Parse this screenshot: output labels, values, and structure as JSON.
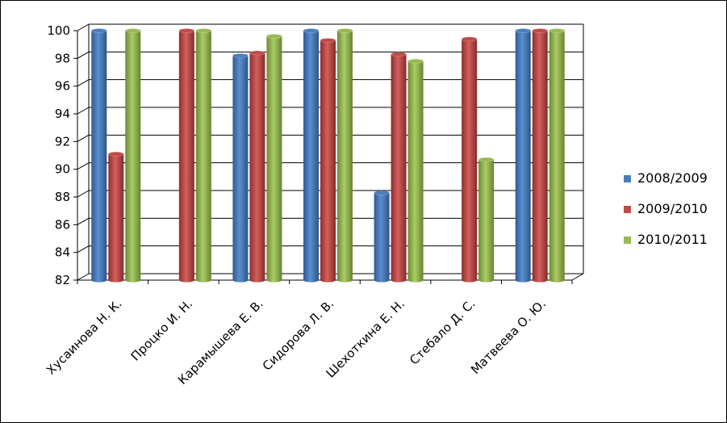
{
  "chart_data": {
    "type": "bar",
    "style": "3d-clustered-column",
    "categories": [
      "Хусаинова Н. К.",
      "Процко И. Н.",
      "Карамышева Е. В.",
      "Сидорова Л. В.",
      "Шехоткина Е. Н.",
      "Стебало Д. С.",
      "Матвеева О. Ю."
    ],
    "series": [
      {
        "name": "2008/2009",
        "color": "#4a7ebb",
        "values": [
          100,
          null,
          98.2,
          100,
          88.3,
          null,
          100
        ]
      },
      {
        "name": "2009/2010",
        "color": "#be4b48",
        "values": [
          91.1,
          100,
          98.4,
          99.3,
          98.3,
          99.4,
          100
        ]
      },
      {
        "name": "2010/2011",
        "color": "#98b954",
        "values": [
          100,
          100,
          99.6,
          100,
          97.8,
          90.7,
          100
        ]
      }
    ],
    "yticks": [
      "82",
      "84",
      "86",
      "88",
      "90",
      "92",
      "94",
      "96",
      "98",
      "100"
    ],
    "ylim": [
      82,
      100
    ],
    "grid": true,
    "legend_position": "right"
  }
}
